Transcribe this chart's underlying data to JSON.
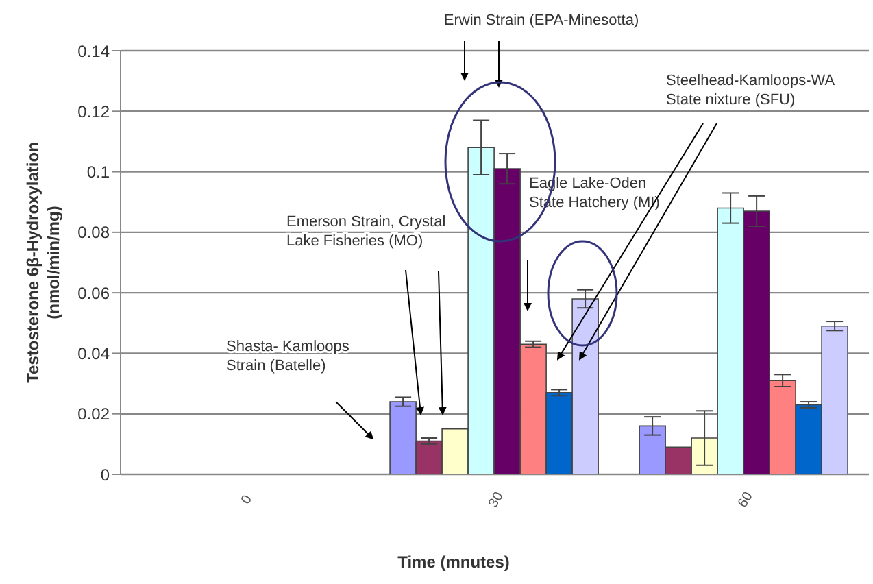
{
  "chart_data": {
    "type": "bar",
    "xlabel": "Time (mnutes)",
    "ylabel": "Testosterone 6β-Hydroxylation\n(nmol/min/mg)",
    "categories": [
      "0",
      "30",
      "60"
    ],
    "ylim": [
      0,
      0.14
    ],
    "yticks": [
      0,
      0.02,
      0.04,
      0.06,
      0.08,
      0.1,
      0.12,
      0.14
    ],
    "grid": "y",
    "legend": false,
    "series": [
      {
        "color": "#9999ff",
        "values": [
          null,
          0.024,
          0.016
        ],
        "errors": [
          null,
          0.0015,
          0.003
        ]
      },
      {
        "color": "#993366",
        "values": [
          null,
          0.011,
          0.009
        ],
        "errors": [
          null,
          0.001,
          null
        ]
      },
      {
        "color": "#ffffcc",
        "values": [
          null,
          0.015,
          0.012
        ],
        "errors": [
          null,
          null,
          0.009
        ]
      },
      {
        "color": "#ccffff",
        "values": [
          null,
          0.108,
          0.088
        ],
        "errors": [
          null,
          0.009,
          0.005
        ]
      },
      {
        "color": "#660066",
        "values": [
          null,
          0.101,
          0.087
        ],
        "errors": [
          null,
          0.005,
          0.005
        ]
      },
      {
        "color": "#ff8080",
        "values": [
          null,
          0.043,
          0.031
        ],
        "errors": [
          null,
          0.001,
          0.002
        ]
      },
      {
        "color": "#0066cc",
        "values": [
          null,
          0.027,
          0.023
        ],
        "errors": [
          null,
          0.001,
          0.001
        ]
      },
      {
        "color": "#ccccff",
        "values": [
          null,
          0.058,
          0.049
        ],
        "errors": [
          null,
          0.003,
          0.0015
        ]
      }
    ],
    "annotations": [
      "Erwin Strain (EPA-Minesotta)",
      "Steelhead-Kamloops-WA\nState nixture (SFU)",
      "Eagle Lake-Oden\nState Hatchery (MI)",
      "Emerson Strain, Crystal\nLake Fisheries (MO)",
      "Shasta- Kamloops\nStrain (Batelle)"
    ]
  }
}
